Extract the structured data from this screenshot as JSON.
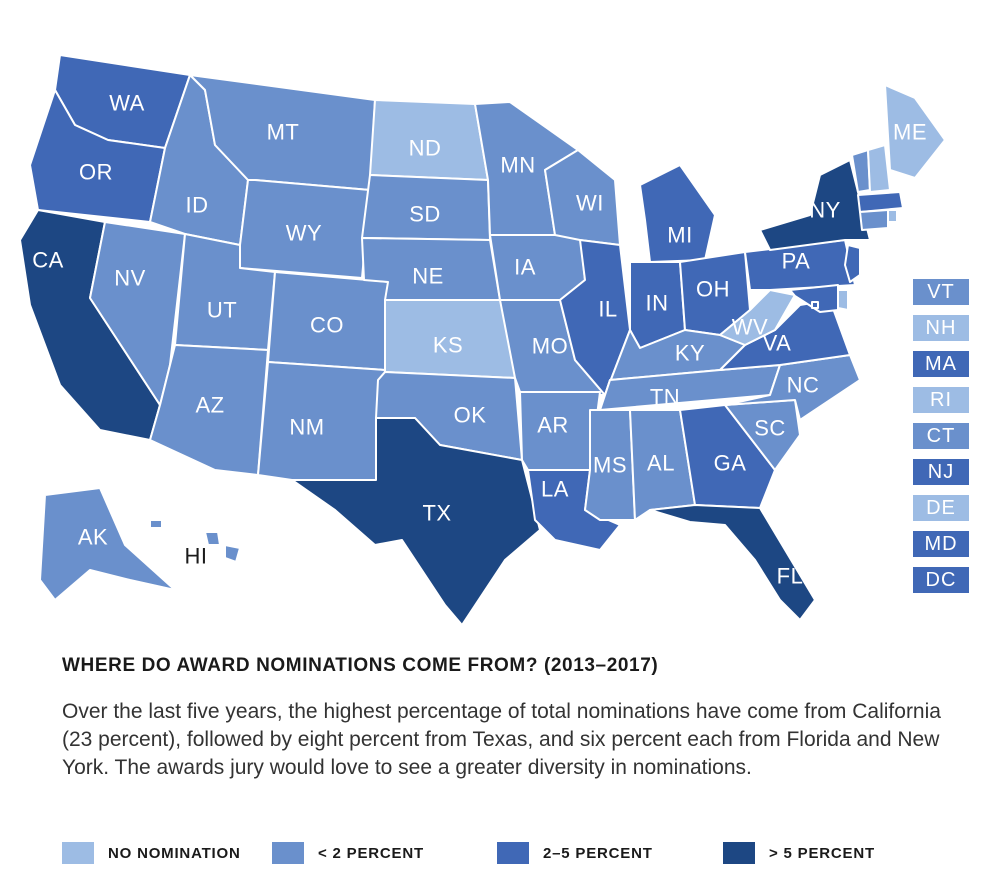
{
  "colors": {
    "none": "#9dbce4",
    "lt2": "#6a90cc",
    "mid": "#4068b6",
    "gt5": "#1d4783",
    "border": "#ffffff"
  },
  "states": [
    {
      "abbr": "WA",
      "level": "mid"
    },
    {
      "abbr": "OR",
      "level": "mid"
    },
    {
      "abbr": "CA",
      "level": "gt5"
    },
    {
      "abbr": "NV",
      "level": "lt2"
    },
    {
      "abbr": "ID",
      "level": "lt2"
    },
    {
      "abbr": "MT",
      "level": "lt2"
    },
    {
      "abbr": "WY",
      "level": "lt2"
    },
    {
      "abbr": "UT",
      "level": "lt2"
    },
    {
      "abbr": "AZ",
      "level": "lt2"
    },
    {
      "abbr": "CO",
      "level": "lt2"
    },
    {
      "abbr": "NM",
      "level": "lt2"
    },
    {
      "abbr": "ND",
      "level": "none"
    },
    {
      "abbr": "SD",
      "level": "lt2"
    },
    {
      "abbr": "NE",
      "level": "lt2"
    },
    {
      "abbr": "KS",
      "level": "none"
    },
    {
      "abbr": "OK",
      "level": "lt2"
    },
    {
      "abbr": "TX",
      "level": "gt5"
    },
    {
      "abbr": "MN",
      "level": "lt2"
    },
    {
      "abbr": "IA",
      "level": "lt2"
    },
    {
      "abbr": "MO",
      "level": "lt2"
    },
    {
      "abbr": "AR",
      "level": "lt2"
    },
    {
      "abbr": "LA",
      "level": "mid"
    },
    {
      "abbr": "WI",
      "level": "lt2"
    },
    {
      "abbr": "IL",
      "level": "mid"
    },
    {
      "abbr": "MI",
      "level": "mid"
    },
    {
      "abbr": "IN",
      "level": "mid"
    },
    {
      "abbr": "OH",
      "level": "mid"
    },
    {
      "abbr": "KY",
      "level": "lt2"
    },
    {
      "abbr": "TN",
      "level": "lt2"
    },
    {
      "abbr": "MS",
      "level": "lt2"
    },
    {
      "abbr": "AL",
      "level": "lt2"
    },
    {
      "abbr": "GA",
      "level": "mid"
    },
    {
      "abbr": "FL",
      "level": "gt5"
    },
    {
      "abbr": "SC",
      "level": "lt2"
    },
    {
      "abbr": "NC",
      "level": "lt2"
    },
    {
      "abbr": "VA",
      "level": "mid"
    },
    {
      "abbr": "WV",
      "level": "none"
    },
    {
      "abbr": "PA",
      "level": "mid"
    },
    {
      "abbr": "NY",
      "level": "gt5"
    },
    {
      "abbr": "ME",
      "level": "none"
    },
    {
      "abbr": "AK",
      "level": "lt2"
    },
    {
      "abbr": "HI",
      "level": "lt2"
    }
  ],
  "small_states": [
    {
      "abbr": "VT",
      "level": "lt2"
    },
    {
      "abbr": "NH",
      "level": "none"
    },
    {
      "abbr": "MA",
      "level": "mid"
    },
    {
      "abbr": "RI",
      "level": "none"
    },
    {
      "abbr": "CT",
      "level": "lt2"
    },
    {
      "abbr": "NJ",
      "level": "mid"
    },
    {
      "abbr": "DE",
      "level": "none"
    },
    {
      "abbr": "MD",
      "level": "mid"
    },
    {
      "abbr": "DC",
      "level": "mid"
    }
  ],
  "title": "WHERE DO AWARD NOMINATIONS COME FROM? (2013–2017)",
  "description": "Over the last five years, the highest percentage of total nominations have come from California (23 percent), followed by eight percent from Texas, and six percent each from Florida and New York. The awards jury would love to see a greater diversity in nominations.",
  "legend": [
    {
      "label": "NO NOMINATION",
      "level": "none"
    },
    {
      "label": "< 2 PERCENT",
      "level": "lt2"
    },
    {
      "label": "2–5 PERCENT",
      "level": "mid"
    },
    {
      "label": "> 5 PERCENT",
      "level": "gt5"
    }
  ]
}
